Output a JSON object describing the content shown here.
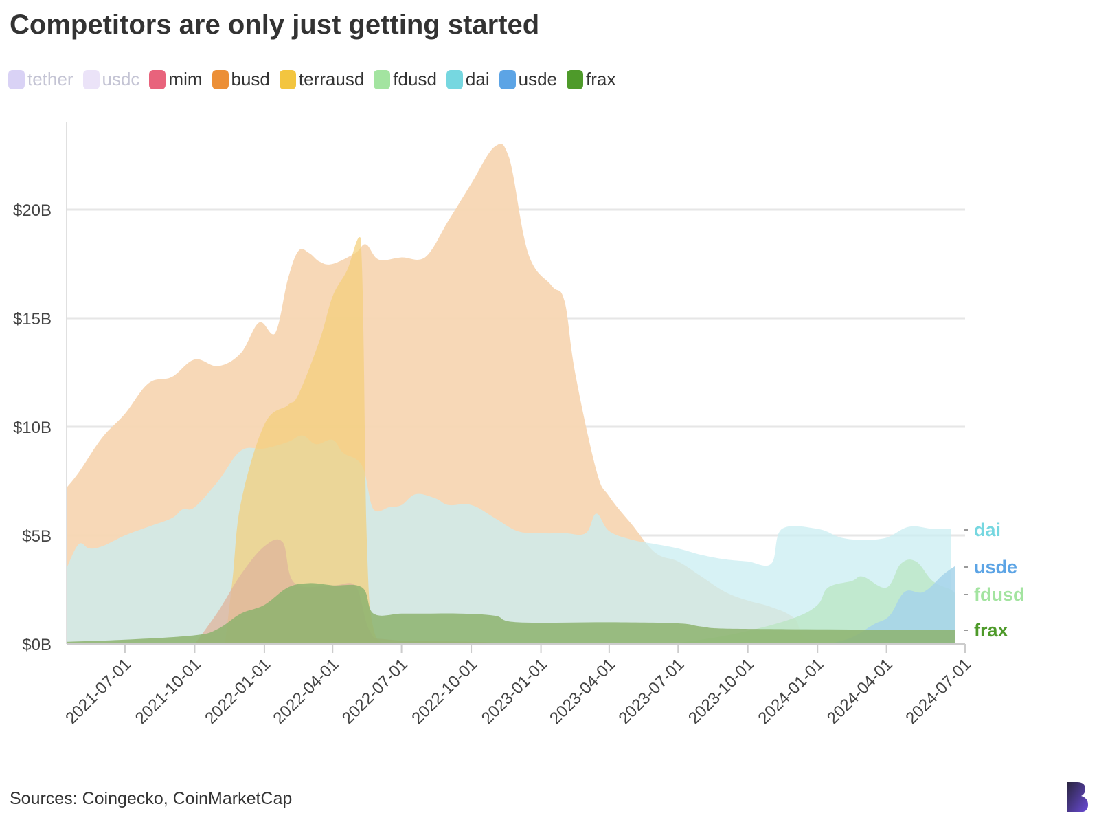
{
  "title": "Competitors are only just getting started",
  "source": "Sources: Coingecko, CoinMarketCap",
  "legend": [
    {
      "name": "tether",
      "color": "#d9d2f5",
      "text_color": "#c4c4d4",
      "muted": true
    },
    {
      "name": "usdc",
      "color": "#ebe3f8",
      "text_color": "#c4c4d4",
      "muted": true
    },
    {
      "name": "mim",
      "color": "#e8637c",
      "text_color": "#333333"
    },
    {
      "name": "busd",
      "color": "#ec8f36",
      "text_color": "#333333"
    },
    {
      "name": "terrausd",
      "color": "#f3c53f",
      "text_color": "#333333"
    },
    {
      "name": "fdusd",
      "color": "#a3e4a0",
      "text_color": "#333333"
    },
    {
      "name": "dai",
      "color": "#76d7e0",
      "text_color": "#333333"
    },
    {
      "name": "usde",
      "color": "#5ca4e5",
      "text_color": "#333333"
    },
    {
      "name": "frax",
      "color": "#4e9a2a",
      "text_color": "#333333"
    }
  ],
  "chart_data": {
    "type": "area",
    "x_type": "date",
    "x_ticks": [
      "2021-07-01",
      "2021-10-01",
      "2022-01-01",
      "2022-04-01",
      "2022-07-01",
      "2022-10-01",
      "2023-01-01",
      "2023-04-01",
      "2023-07-01",
      "2023-10-01",
      "2024-01-01",
      "2024-04-01",
      "2024-07-01"
    ],
    "xlim": [
      "2021-04-15",
      "2024-07-01"
    ],
    "y_ticks": [
      {
        "value": 0,
        "label": "$0B"
      },
      {
        "value": 5,
        "label": "$5B"
      },
      {
        "value": 10,
        "label": "$10B"
      },
      {
        "value": 15,
        "label": "$15B"
      },
      {
        "value": 20,
        "label": "$20B"
      }
    ],
    "ylim": [
      0,
      24
    ],
    "y_unit": "$B",
    "grid": "horizontal",
    "end_labels": [
      {
        "series": "dai",
        "text": "dai",
        "color": "#76d7e0"
      },
      {
        "series": "usde",
        "text": "usde",
        "color": "#5ca4e5"
      },
      {
        "series": "fdusd",
        "text": "fdusd",
        "color": "#a3e4a0"
      },
      {
        "series": "frax",
        "text": "frax",
        "color": "#4e9a2a"
      }
    ],
    "series": [
      {
        "name": "busd",
        "color": "#f7d6b3",
        "opacity": 0.95,
        "points": [
          [
            "2021-04-15",
            7.2
          ],
          [
            "2021-05-01",
            7.9
          ],
          [
            "2021-06-01",
            9.5
          ],
          [
            "2021-07-01",
            10.6
          ],
          [
            "2021-08-01",
            12.0
          ],
          [
            "2021-09-01",
            12.3
          ],
          [
            "2021-10-01",
            13.1
          ],
          [
            "2021-11-01",
            12.8
          ],
          [
            "2021-12-01",
            13.4
          ],
          [
            "2021-12-25",
            14.8
          ],
          [
            "2022-01-15",
            14.3
          ],
          [
            "2022-02-01",
            16.8
          ],
          [
            "2022-02-15",
            18.1
          ],
          [
            "2022-03-01",
            18.0
          ],
          [
            "2022-03-15",
            17.6
          ],
          [
            "2022-04-01",
            17.5
          ],
          [
            "2022-05-01",
            18.0
          ],
          [
            "2022-05-15",
            18.4
          ],
          [
            "2022-06-01",
            17.7
          ],
          [
            "2022-07-01",
            17.8
          ],
          [
            "2022-08-01",
            17.8
          ],
          [
            "2022-09-01",
            19.5
          ],
          [
            "2022-10-01",
            21.2
          ],
          [
            "2022-11-01",
            22.9
          ],
          [
            "2022-11-20",
            22.4
          ],
          [
            "2022-12-15",
            18.0
          ],
          [
            "2023-01-15",
            16.5
          ],
          [
            "2023-02-01",
            15.8
          ],
          [
            "2023-02-15",
            12.5
          ],
          [
            "2023-03-15",
            8.0
          ],
          [
            "2023-04-01",
            6.8
          ],
          [
            "2023-05-01",
            5.5
          ],
          [
            "2023-06-01",
            4.2
          ],
          [
            "2023-07-01",
            3.8
          ],
          [
            "2023-08-01",
            3.1
          ],
          [
            "2023-09-01",
            2.4
          ],
          [
            "2023-10-01",
            2.0
          ],
          [
            "2023-11-01",
            1.7
          ],
          [
            "2023-12-01",
            1.2
          ],
          [
            "2024-01-01",
            0.05
          ],
          [
            "2024-07-01",
            0.0
          ]
        ]
      },
      {
        "name": "dai",
        "color": "#c9edf1",
        "opacity": 0.75,
        "points": [
          [
            "2021-04-15",
            3.5
          ],
          [
            "2021-05-01",
            4.6
          ],
          [
            "2021-05-15",
            4.4
          ],
          [
            "2021-06-01",
            4.5
          ],
          [
            "2021-07-01",
            5.0
          ],
          [
            "2021-08-01",
            5.4
          ],
          [
            "2021-09-01",
            5.8
          ],
          [
            "2021-09-15",
            6.2
          ],
          [
            "2021-10-01",
            6.3
          ],
          [
            "2021-11-01",
            7.5
          ],
          [
            "2021-12-01",
            8.9
          ],
          [
            "2022-01-01",
            9.0
          ],
          [
            "2022-02-01",
            9.3
          ],
          [
            "2022-02-20",
            9.6
          ],
          [
            "2022-03-10",
            9.2
          ],
          [
            "2022-04-01",
            9.4
          ],
          [
            "2022-04-15",
            8.8
          ],
          [
            "2022-05-10",
            8.2
          ],
          [
            "2022-05-25",
            6.2
          ],
          [
            "2022-06-15",
            6.3
          ],
          [
            "2022-07-01",
            6.4
          ],
          [
            "2022-07-20",
            6.9
          ],
          [
            "2022-08-15",
            6.7
          ],
          [
            "2022-09-01",
            6.4
          ],
          [
            "2022-10-01",
            6.4
          ],
          [
            "2022-11-01",
            5.8
          ],
          [
            "2022-12-01",
            5.2
          ],
          [
            "2023-01-01",
            5.1
          ],
          [
            "2023-02-01",
            5.1
          ],
          [
            "2023-03-01",
            5.1
          ],
          [
            "2023-03-15",
            6.0
          ],
          [
            "2023-04-01",
            5.2
          ],
          [
            "2023-05-01",
            4.8
          ],
          [
            "2023-06-01",
            4.6
          ],
          [
            "2023-07-01",
            4.4
          ],
          [
            "2023-08-01",
            4.1
          ],
          [
            "2023-09-01",
            3.9
          ],
          [
            "2023-10-01",
            3.8
          ],
          [
            "2023-11-01",
            3.7
          ],
          [
            "2023-11-15",
            5.3
          ],
          [
            "2024-01-01",
            5.3
          ],
          [
            "2024-02-01",
            4.9
          ],
          [
            "2024-03-01",
            4.8
          ],
          [
            "2024-04-01",
            4.9
          ],
          [
            "2024-05-01",
            5.4
          ],
          [
            "2024-06-01",
            5.3
          ],
          [
            "2024-06-25",
            5.3
          ]
        ]
      },
      {
        "name": "terrausd",
        "color": "#f4cf77",
        "opacity": 0.7,
        "points": [
          [
            "2021-11-10",
            0.0
          ],
          [
            "2021-11-20",
            3.0
          ],
          [
            "2021-12-01",
            6.5
          ],
          [
            "2022-01-01",
            10.1
          ],
          [
            "2022-02-01",
            11.0
          ],
          [
            "2022-02-15",
            11.5
          ],
          [
            "2022-03-15",
            14.0
          ],
          [
            "2022-04-01",
            16.0
          ],
          [
            "2022-04-20",
            17.2
          ],
          [
            "2022-05-08",
            18.7
          ],
          [
            "2022-05-16",
            5.0
          ],
          [
            "2022-05-25",
            0.7
          ],
          [
            "2022-06-15",
            0.0
          ]
        ]
      },
      {
        "name": "fdusd",
        "color": "#b9e6c2",
        "opacity": 0.75,
        "points": [
          [
            "2023-06-15",
            0.0
          ],
          [
            "2023-08-01",
            0.2
          ],
          [
            "2023-10-01",
            0.6
          ],
          [
            "2023-12-01",
            1.2
          ],
          [
            "2024-01-01",
            1.8
          ],
          [
            "2024-01-15",
            2.6
          ],
          [
            "2024-02-15",
            2.9
          ],
          [
            "2024-03-01",
            3.1
          ],
          [
            "2024-04-01",
            2.6
          ],
          [
            "2024-04-20",
            3.7
          ],
          [
            "2024-05-10",
            3.8
          ],
          [
            "2024-06-01",
            2.9
          ],
          [
            "2024-06-25",
            2.5
          ],
          [
            "2024-07-01",
            2.3
          ]
        ]
      },
      {
        "name": "mim",
        "color": "#dfb49c",
        "opacity": 0.75,
        "points": [
          [
            "2021-10-01",
            0.0
          ],
          [
            "2021-11-01",
            1.5
          ],
          [
            "2021-12-01",
            3.2
          ],
          [
            "2022-01-01",
            4.5
          ],
          [
            "2022-01-25",
            4.7
          ],
          [
            "2022-02-10",
            2.8
          ],
          [
            "2022-04-01",
            2.7
          ],
          [
            "2022-05-01",
            2.7
          ],
          [
            "2022-05-20",
            0.6
          ],
          [
            "2022-06-15",
            0.2
          ],
          [
            "2022-10-01",
            0.1
          ],
          [
            "2023-01-01",
            0.05
          ],
          [
            "2024-07-01",
            0.0
          ]
        ]
      },
      {
        "name": "usde",
        "color": "#a6d3ea",
        "opacity": 0.85,
        "points": [
          [
            "2024-01-15",
            0.0
          ],
          [
            "2024-02-15",
            0.3
          ],
          [
            "2024-03-15",
            0.9
          ],
          [
            "2024-04-05",
            1.3
          ],
          [
            "2024-04-25",
            2.4
          ],
          [
            "2024-05-20",
            2.4
          ],
          [
            "2024-06-15",
            3.2
          ],
          [
            "2024-07-01",
            3.6
          ]
        ]
      },
      {
        "name": "frax",
        "color": "#8db36f",
        "opacity": 0.85,
        "points": [
          [
            "2021-04-15",
            0.1
          ],
          [
            "2021-07-01",
            0.2
          ],
          [
            "2021-10-01",
            0.4
          ],
          [
            "2021-11-01",
            0.7
          ],
          [
            "2021-12-01",
            1.4
          ],
          [
            "2022-01-01",
            1.8
          ],
          [
            "2022-02-01",
            2.6
          ],
          [
            "2022-03-01",
            2.8
          ],
          [
            "2022-04-01",
            2.7
          ],
          [
            "2022-05-10",
            2.6
          ],
          [
            "2022-05-25",
            1.4
          ],
          [
            "2022-07-01",
            1.4
          ],
          [
            "2022-08-01",
            1.4
          ],
          [
            "2022-09-15",
            1.4
          ],
          [
            "2022-11-01",
            1.3
          ],
          [
            "2022-12-01",
            1.0
          ],
          [
            "2023-04-01",
            1.0
          ],
          [
            "2023-07-01",
            0.95
          ],
          [
            "2023-08-01",
            0.8
          ],
          [
            "2023-09-15",
            0.7
          ],
          [
            "2024-07-01",
            0.65
          ]
        ]
      }
    ]
  }
}
